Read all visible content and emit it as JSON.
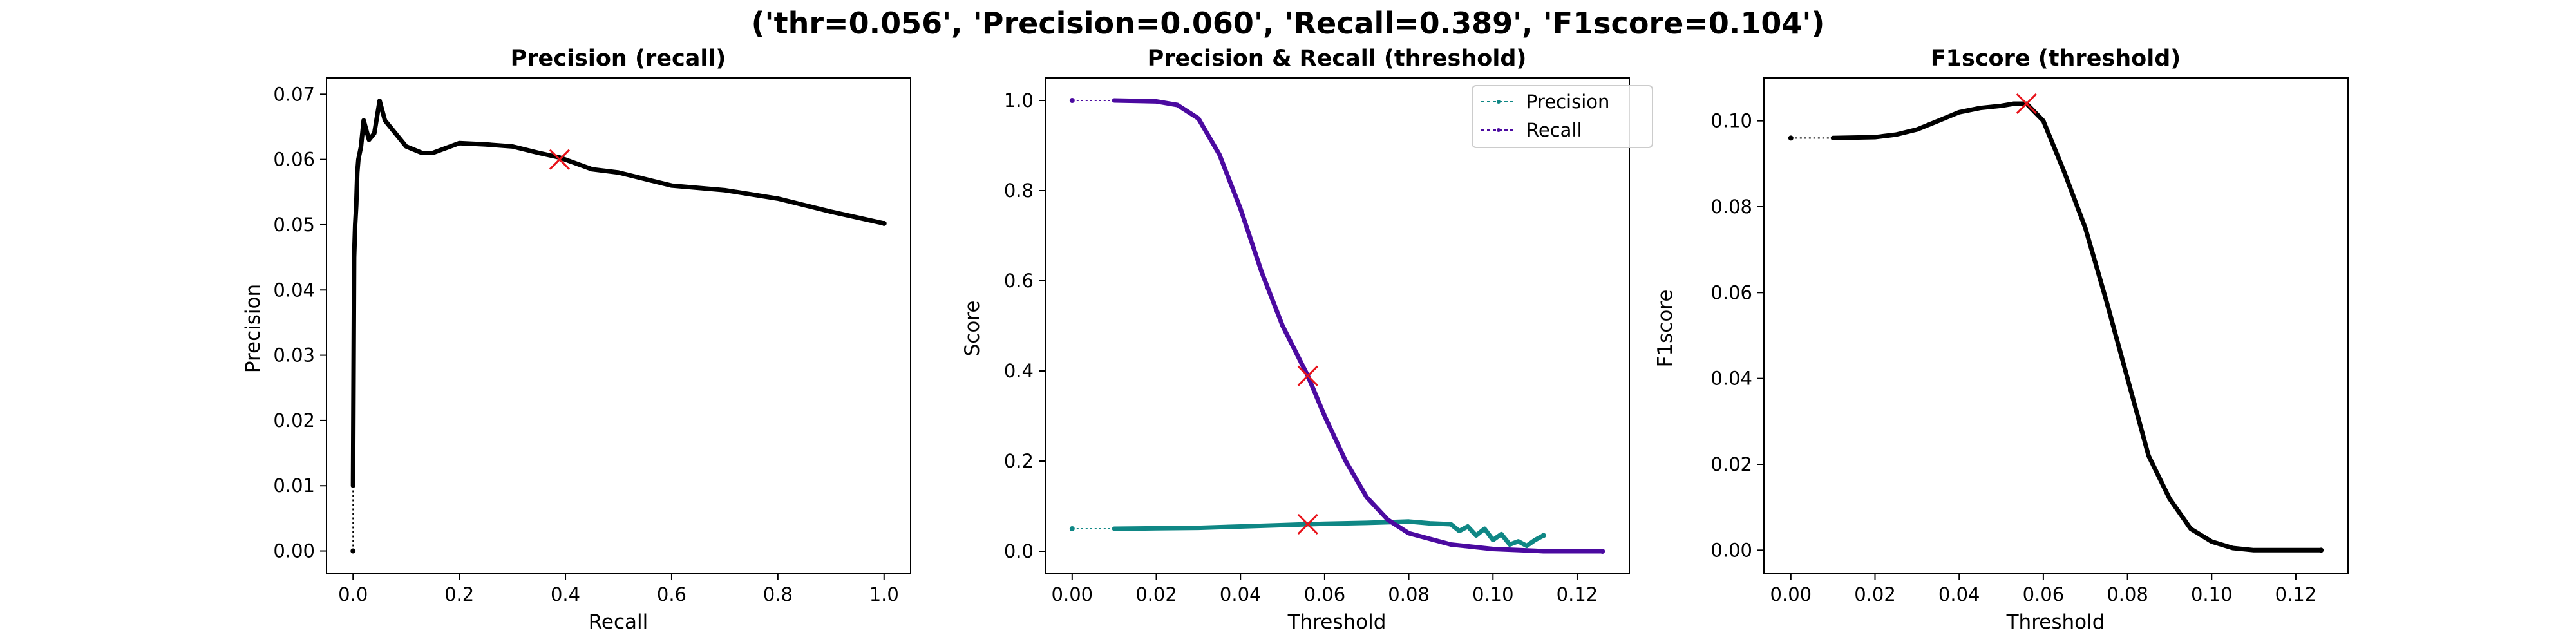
{
  "figure": {
    "suptitle": "('thr=0.056', 'Precision=0.060', 'Recall=0.389', 'F1score=0.104')",
    "marker_color": "#e8121a"
  },
  "chart_data": [
    {
      "type": "line",
      "title": "Precision (recall)",
      "xlabel": "Recall",
      "ylabel": "Precision",
      "xlim": [
        -0.05,
        1.05
      ],
      "ylim": [
        -0.0035,
        0.0725
      ],
      "xticks": [
        0.0,
        0.2,
        0.4,
        0.6,
        0.8,
        1.0
      ],
      "xtick_labels": [
        "0.0",
        "0.2",
        "0.4",
        "0.6",
        "0.8",
        "1.0"
      ],
      "yticks": [
        0.0,
        0.01,
        0.02,
        0.03,
        0.04,
        0.05,
        0.06,
        0.07
      ],
      "ytick_labels": [
        "0.00",
        "0.01",
        "0.02",
        "0.03",
        "0.04",
        "0.05",
        "0.06",
        "0.07"
      ],
      "series": [
        {
          "color": "#000000",
          "x": [
            0.0,
            0.0,
            0.002,
            0.004,
            0.006,
            0.008,
            0.01,
            0.015,
            0.02,
            0.03,
            0.04,
            0.05,
            0.06,
            0.07,
            0.1,
            0.13,
            0.15,
            0.2,
            0.25,
            0.3,
            0.35,
            0.389,
            0.45,
            0.5,
            0.6,
            0.7,
            0.8,
            0.9,
            1.0
          ],
          "y": [
            0.0,
            0.01,
            0.045,
            0.05,
            0.053,
            0.058,
            0.06,
            0.062,
            0.066,
            0.063,
            0.064,
            0.069,
            0.066,
            0.065,
            0.062,
            0.061,
            0.061,
            0.0625,
            0.0623,
            0.062,
            0.061,
            0.0603,
            0.0585,
            0.058,
            0.056,
            0.0553,
            0.054,
            0.052,
            0.0502
          ]
        }
      ],
      "highlight": {
        "x": 0.389,
        "y": 0.06
      }
    },
    {
      "type": "line",
      "title": "Precision & Recall (threshold)",
      "xlabel": "Threshold",
      "ylabel": "Score",
      "xlim": [
        -0.0064,
        0.1324
      ],
      "ylim": [
        -0.05,
        1.05
      ],
      "xticks": [
        0.0,
        0.02,
        0.04,
        0.06,
        0.08,
        0.1,
        0.12
      ],
      "xtick_labels": [
        "0.00",
        "0.02",
        "0.04",
        "0.06",
        "0.08",
        "0.10",
        "0.12"
      ],
      "yticks": [
        0.0,
        0.2,
        0.4,
        0.6,
        0.8,
        1.0
      ],
      "ytick_labels": [
        "0.0",
        "0.2",
        "0.4",
        "0.6",
        "0.8",
        "1.0"
      ],
      "legend": {
        "placement": "top-right",
        "entries": [
          "Precision",
          "Recall"
        ]
      },
      "series": [
        {
          "name": "Precision",
          "color": "#0f8785",
          "x": [
            0.0,
            0.01,
            0.02,
            0.03,
            0.04,
            0.05,
            0.056,
            0.06,
            0.07,
            0.08,
            0.085,
            0.09,
            0.092,
            0.094,
            0.096,
            0.098,
            0.1,
            0.102,
            0.104,
            0.106,
            0.108,
            0.11,
            0.112
          ],
          "y": [
            0.05,
            0.05,
            0.051,
            0.052,
            0.055,
            0.058,
            0.06,
            0.061,
            0.063,
            0.066,
            0.062,
            0.06,
            0.045,
            0.055,
            0.035,
            0.05,
            0.025,
            0.038,
            0.015,
            0.022,
            0.012,
            0.025,
            0.035
          ]
        },
        {
          "name": "Recall",
          "color": "#4b0aa0",
          "x": [
            0.0,
            0.01,
            0.02,
            0.025,
            0.03,
            0.035,
            0.04,
            0.045,
            0.05,
            0.056,
            0.06,
            0.065,
            0.07,
            0.075,
            0.08,
            0.09,
            0.1,
            0.11,
            0.112,
            0.126
          ],
          "y": [
            1.0,
            1.0,
            0.998,
            0.99,
            0.96,
            0.88,
            0.76,
            0.62,
            0.5,
            0.389,
            0.3,
            0.2,
            0.12,
            0.07,
            0.04,
            0.015,
            0.005,
            0.001,
            0.0,
            0.0
          ]
        }
      ],
      "highlights": [
        {
          "x": 0.056,
          "y": 0.389
        },
        {
          "x": 0.056,
          "y": 0.06
        }
      ]
    },
    {
      "type": "line",
      "title": "F1score (threshold)",
      "xlabel": "Threshold",
      "ylabel": "F1score",
      "xlim": [
        -0.0064,
        0.1324
      ],
      "ylim": [
        -0.0055,
        0.11
      ],
      "xticks": [
        0.0,
        0.02,
        0.04,
        0.06,
        0.08,
        0.1,
        0.12
      ],
      "xtick_labels": [
        "0.00",
        "0.02",
        "0.04",
        "0.06",
        "0.08",
        "0.10",
        "0.12"
      ],
      "yticks": [
        0.0,
        0.02,
        0.04,
        0.06,
        0.08,
        0.1
      ],
      "ytick_labels": [
        "0.00",
        "0.02",
        "0.04",
        "0.06",
        "0.08",
        "0.10"
      ],
      "series": [
        {
          "color": "#000000",
          "x": [
            0.0,
            0.01,
            0.02,
            0.025,
            0.03,
            0.035,
            0.04,
            0.045,
            0.05,
            0.053,
            0.056,
            0.06,
            0.065,
            0.07,
            0.075,
            0.08,
            0.085,
            0.09,
            0.095,
            0.1,
            0.105,
            0.11,
            0.115,
            0.126
          ],
          "y": [
            0.096,
            0.096,
            0.0962,
            0.0968,
            0.098,
            0.1,
            0.102,
            0.103,
            0.1035,
            0.104,
            0.104,
            0.1,
            0.088,
            0.075,
            0.058,
            0.04,
            0.022,
            0.012,
            0.005,
            0.002,
            0.0005,
            0.0,
            0.0,
            0.0
          ]
        }
      ],
      "highlight": {
        "x": 0.056,
        "y": 0.104
      }
    }
  ]
}
